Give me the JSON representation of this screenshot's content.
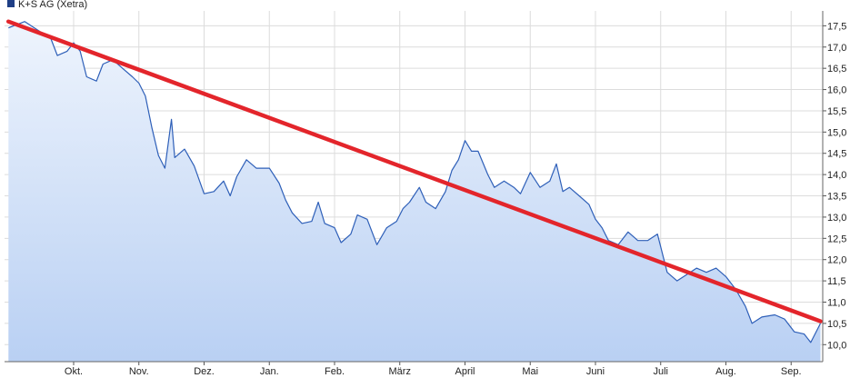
{
  "chart_data": {
    "type": "area",
    "title": "",
    "xlabel": "",
    "ylabel": "",
    "legend": {
      "label": "K+S AG (Xetra)",
      "position": "top-left"
    },
    "ylim": [
      9.6,
      17.85
    ],
    "y_ticks": [
      "17,5",
      "17,0",
      "16,5",
      "16,0",
      "15,5",
      "15,0",
      "14,5",
      "14,0",
      "13,5",
      "13,0",
      "12,5",
      "12,0",
      "11,5",
      "11,0",
      "10,5",
      "10,0"
    ],
    "y_tick_values": [
      17.5,
      17.0,
      16.5,
      16.0,
      15.5,
      15.0,
      14.5,
      14.0,
      13.5,
      13.0,
      12.5,
      12.0,
      11.5,
      11.0,
      10.5,
      10.0
    ],
    "x_ticks": [
      "Okt.",
      "Nov.",
      "Dez.",
      "Jan.",
      "Feb.",
      "März",
      "April",
      "Mai",
      "Juni",
      "Juli",
      "Aug.",
      "Sep."
    ],
    "grid": true,
    "colors": {
      "line": "#2e5fb8",
      "fill_top": "#eef4fd",
      "fill_bottom": "#b9d0f3",
      "trend": "#e3252b",
      "legend_box": "#1f3f86",
      "grid": "#dcdcdc"
    },
    "series": [
      {
        "name": "K+S AG (Xetra)",
        "points": [
          [
            0.0,
            17.45
          ],
          [
            0.25,
            17.6
          ],
          [
            0.45,
            17.4
          ],
          [
            0.65,
            17.2
          ],
          [
            0.75,
            16.8
          ],
          [
            0.9,
            16.9
          ],
          [
            1.0,
            17.1
          ],
          [
            1.1,
            16.9
          ],
          [
            1.2,
            16.3
          ],
          [
            1.35,
            16.2
          ],
          [
            1.45,
            16.6
          ],
          [
            1.6,
            16.7
          ],
          [
            1.75,
            16.5
          ],
          [
            1.9,
            16.3
          ],
          [
            2.0,
            16.15
          ],
          [
            2.1,
            15.85
          ],
          [
            2.2,
            15.1
          ],
          [
            2.3,
            14.45
          ],
          [
            2.4,
            14.15
          ],
          [
            2.5,
            15.3
          ],
          [
            2.55,
            14.4
          ],
          [
            2.7,
            14.6
          ],
          [
            2.85,
            14.2
          ],
          [
            3.0,
            13.55
          ],
          [
            3.15,
            13.6
          ],
          [
            3.3,
            13.85
          ],
          [
            3.4,
            13.5
          ],
          [
            3.5,
            13.95
          ],
          [
            3.65,
            14.35
          ],
          [
            3.8,
            14.15
          ],
          [
            4.0,
            14.15
          ],
          [
            4.15,
            13.8
          ],
          [
            4.25,
            13.4
          ],
          [
            4.35,
            13.1
          ],
          [
            4.5,
            12.85
          ],
          [
            4.65,
            12.9
          ],
          [
            4.75,
            13.35
          ],
          [
            4.85,
            12.85
          ],
          [
            5.0,
            12.75
          ],
          [
            5.1,
            12.4
          ],
          [
            5.25,
            12.6
          ],
          [
            5.35,
            13.05
          ],
          [
            5.5,
            12.95
          ],
          [
            5.65,
            12.35
          ],
          [
            5.8,
            12.75
          ],
          [
            5.95,
            12.9
          ],
          [
            6.05,
            13.2
          ],
          [
            6.15,
            13.35
          ],
          [
            6.3,
            13.7
          ],
          [
            6.4,
            13.35
          ],
          [
            6.55,
            13.2
          ],
          [
            6.7,
            13.6
          ],
          [
            6.8,
            14.1
          ],
          [
            6.9,
            14.35
          ],
          [
            7.0,
            14.8
          ],
          [
            7.1,
            14.55
          ],
          [
            7.2,
            14.55
          ],
          [
            7.35,
            14.0
          ],
          [
            7.45,
            13.7
          ],
          [
            7.6,
            13.85
          ],
          [
            7.75,
            13.7
          ],
          [
            7.85,
            13.55
          ],
          [
            8.0,
            14.05
          ],
          [
            8.15,
            13.7
          ],
          [
            8.3,
            13.85
          ],
          [
            8.4,
            14.25
          ],
          [
            8.5,
            13.6
          ],
          [
            8.6,
            13.7
          ],
          [
            8.75,
            13.5
          ],
          [
            8.9,
            13.3
          ],
          [
            9.0,
            12.95
          ],
          [
            9.1,
            12.75
          ],
          [
            9.2,
            12.45
          ],
          [
            9.35,
            12.35
          ],
          [
            9.5,
            12.65
          ],
          [
            9.65,
            12.45
          ],
          [
            9.8,
            12.45
          ],
          [
            9.95,
            12.6
          ],
          [
            10.1,
            11.7
          ],
          [
            10.25,
            11.5
          ],
          [
            10.4,
            11.65
          ],
          [
            10.55,
            11.8
          ],
          [
            10.7,
            11.7
          ],
          [
            10.85,
            11.8
          ],
          [
            11.0,
            11.6
          ],
          [
            11.15,
            11.3
          ],
          [
            11.3,
            10.9
          ],
          [
            11.4,
            10.5
          ],
          [
            11.55,
            10.65
          ],
          [
            11.75,
            10.7
          ],
          [
            11.9,
            10.6
          ],
          [
            12.05,
            10.3
          ],
          [
            12.2,
            10.25
          ],
          [
            12.3,
            10.05
          ],
          [
            12.45,
            10.5
          ]
        ]
      }
    ],
    "trendline": {
      "start": [
        0.0,
        17.6
      ],
      "end": [
        12.45,
        10.55
      ]
    }
  }
}
